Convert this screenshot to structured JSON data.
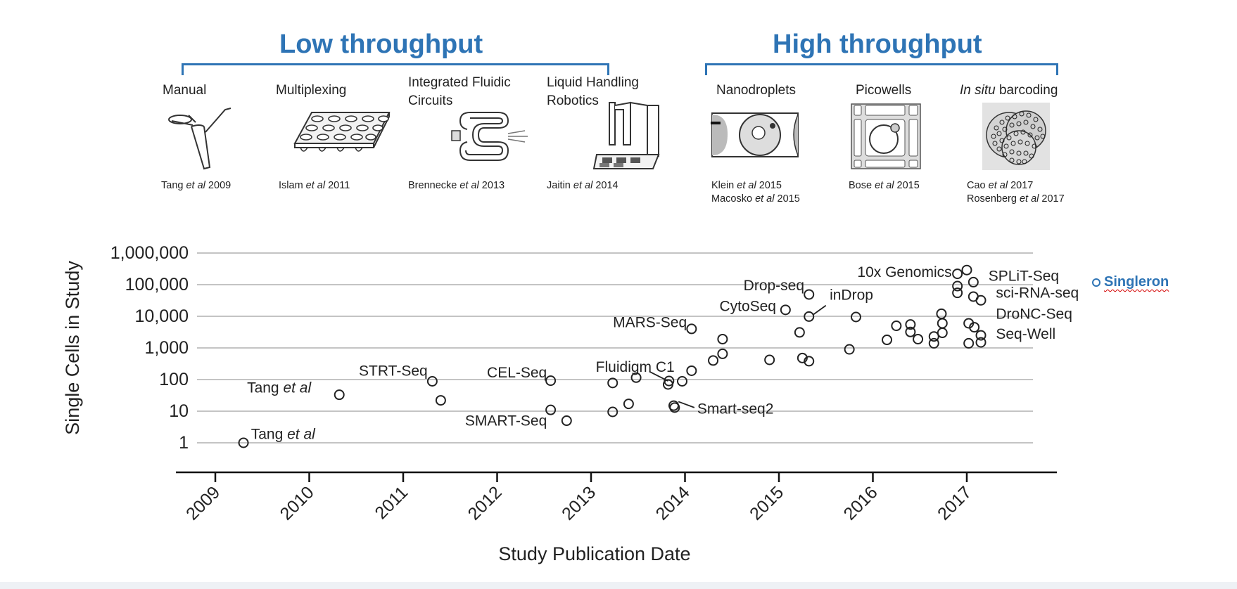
{
  "groups": {
    "low": {
      "title": "Low throughput"
    },
    "high": {
      "title": "High throughput"
    }
  },
  "methods": {
    "manual": {
      "label": "Manual",
      "cite_a": "Tang ",
      "cite_et": "et al",
      "cite_b": " 2009"
    },
    "multiplexing": {
      "label": "Multiplexing",
      "cite_a": "Islam ",
      "cite_et": "et al",
      "cite_b": " 2011"
    },
    "ifc": {
      "label_1": "Integrated Fluidic",
      "label_2": "Circuits",
      "cite_a": "Brennecke ",
      "cite_et": "et al",
      "cite_b": " 2013"
    },
    "robotics": {
      "label_1": "Liquid Handling",
      "label_2": "Robotics",
      "cite_a": "Jaitin ",
      "cite_et": "et al",
      "cite_b": " 2014"
    },
    "nanodroplets": {
      "label": "Nanodroplets",
      "cite1_a": "Klein ",
      "cite1_et": "et al",
      "cite1_b": " 2015",
      "cite2_a": "Macosko ",
      "cite2_et": "et al",
      "cite2_b": " 2015"
    },
    "picowells": {
      "label": "Picowells",
      "cite_a": "Bose ",
      "cite_et": "et al",
      "cite_b": " 2015"
    },
    "insitu": {
      "label_em": "In situ",
      "label_rest": " barcoding",
      "cite1_a": "Cao ",
      "cite1_et": "et al",
      "cite1_b": " 2017",
      "cite2_a": "Rosenberg ",
      "cite2_et": "et al",
      "cite2_b": " 2017"
    }
  },
  "legend": {
    "label": "Singleron",
    "color": "#2e74b5"
  },
  "chart_data": {
    "type": "scatter",
    "xlabel": "Study Publication Date",
    "ylabel": "Single Cells in Study",
    "xlim": [
      2008.75,
      2017.8
    ],
    "ylim": [
      1,
      1000000
    ],
    "yscale": "log",
    "grid": true,
    "x_ticks": [
      "2009",
      "2010",
      "2011",
      "2012",
      "2013",
      "2014",
      "2015",
      "2016",
      "2017"
    ],
    "y_ticks": [
      {
        "value": 1,
        "label": "1"
      },
      {
        "value": 10,
        "label": "10"
      },
      {
        "value": 100,
        "label": "100"
      },
      {
        "value": 1000,
        "label": "1,000"
      },
      {
        "value": 10000,
        "label": "10,000"
      },
      {
        "value": 100000,
        "label": "100,000"
      },
      {
        "value": 1000000,
        "label": "1,000,000"
      }
    ],
    "points": [
      {
        "x": 2009.3,
        "y": 1
      },
      {
        "x": 2010.32,
        "y": 33
      },
      {
        "x": 2011.31,
        "y": 88
      },
      {
        "x": 2011.4,
        "y": 22
      },
      {
        "x": 2012.57,
        "y": 92
      },
      {
        "x": 2012.57,
        "y": 11
      },
      {
        "x": 2012.74,
        "y": 5
      },
      {
        "x": 2013.23,
        "y": 78
      },
      {
        "x": 2013.23,
        "y": 9.5
      },
      {
        "x": 2013.4,
        "y": 17
      },
      {
        "x": 2013.48,
        "y": 115
      },
      {
        "x": 2013.82,
        "y": 70
      },
      {
        "x": 2013.83,
        "y": 90
      },
      {
        "x": 2013.88,
        "y": 15
      },
      {
        "x": 2013.89,
        "y": 13
      },
      {
        "x": 2013.97,
        "y": 88
      },
      {
        "x": 2014.07,
        "y": 190
      },
      {
        "x": 2014.07,
        "y": 4000
      },
      {
        "x": 2014.3,
        "y": 400
      },
      {
        "x": 2014.4,
        "y": 650
      },
      {
        "x": 2014.4,
        "y": 1900
      },
      {
        "x": 2014.9,
        "y": 420
      },
      {
        "x": 2015.07,
        "y": 16000
      },
      {
        "x": 2015.22,
        "y": 3100
      },
      {
        "x": 2015.25,
        "y": 480
      },
      {
        "x": 2015.32,
        "y": 380
      },
      {
        "x": 2015.32,
        "y": 9800
      },
      {
        "x": 2015.32,
        "y": 49000
      },
      {
        "x": 2015.75,
        "y": 900
      },
      {
        "x": 2015.82,
        "y": 9500
      },
      {
        "x": 2016.15,
        "y": 1800
      },
      {
        "x": 2016.25,
        "y": 5000
      },
      {
        "x": 2016.4,
        "y": 5500
      },
      {
        "x": 2016.4,
        "y": 3200
      },
      {
        "x": 2016.48,
        "y": 1900
      },
      {
        "x": 2016.65,
        "y": 2300
      },
      {
        "x": 2016.65,
        "y": 1400
      },
      {
        "x": 2016.73,
        "y": 12000
      },
      {
        "x": 2016.74,
        "y": 6000
      },
      {
        "x": 2016.74,
        "y": 3000
      },
      {
        "x": 2016.9,
        "y": 220000
      },
      {
        "x": 2016.9,
        "y": 90000
      },
      {
        "x": 2016.9,
        "y": 55000
      },
      {
        "x": 2017.0,
        "y": 290000
      },
      {
        "x": 2017.07,
        "y": 120000
      },
      {
        "x": 2017.07,
        "y": 42000
      },
      {
        "x": 2017.15,
        "y": 32000
      },
      {
        "x": 2017.02,
        "y": 6000
      },
      {
        "x": 2017.08,
        "y": 4500
      },
      {
        "x": 2017.02,
        "y": 1400
      },
      {
        "x": 2017.15,
        "y": 2500
      },
      {
        "x": 2017.15,
        "y": 1500
      }
    ],
    "annotations": [
      {
        "text": "Tang ",
        "em": "et al",
        "x": 2009.38,
        "y": 1.9,
        "anchor": "start"
      },
      {
        "text": "Tang ",
        "em": "et al",
        "x": 2010.02,
        "y": 55,
        "anchor": "end"
      },
      {
        "text": "STRT-Seq",
        "x": 2011.26,
        "y": 190,
        "anchor": "end"
      },
      {
        "text": "CEL-Seq",
        "x": 2012.53,
        "y": 165,
        "anchor": "end"
      },
      {
        "text": "SMART-Seq",
        "x": 2012.53,
        "y": 5,
        "anchor": "end"
      },
      {
        "text": "MARS-Seq",
        "x": 2014.02,
        "y": 6500,
        "anchor": "end"
      },
      {
        "text": "Fluidigm C1",
        "x": 2013.05,
        "y": 250,
        "anchor": "start"
      },
      {
        "text": "Smart-seq2",
        "x": 2014.13,
        "y": 12,
        "anchor": "start"
      },
      {
        "text": "CytoSeq",
        "x": 2014.97,
        "y": 21000,
        "anchor": "end"
      },
      {
        "text": "Drop-seq",
        "x": 2015.27,
        "y": 95000,
        "anchor": "end"
      },
      {
        "text": "inDrop",
        "x": 2015.54,
        "y": 48000,
        "anchor": "start"
      },
      {
        "text": "10x Genomics",
        "x": 2016.84,
        "y": 250000,
        "anchor": "end"
      },
      {
        "text": "SPLiT-Seq",
        "x": 2017.23,
        "y": 190000,
        "anchor": "start"
      },
      {
        "text": "sci-RNA-seq",
        "x": 2017.31,
        "y": 55000,
        "anchor": "start"
      },
      {
        "text": "DroNC-Seq",
        "x": 2017.31,
        "y": 12000,
        "anchor": "start"
      },
      {
        "text": "Seq-Well",
        "x": 2017.31,
        "y": 2800,
        "anchor": "start"
      }
    ],
    "leaders": [
      {
        "x1": 2013.62,
        "y1": 180,
        "x2": 2013.82,
        "y2": 90
      },
      {
        "x1": 2014.1,
        "y1": 13,
        "x2": 2013.93,
        "y2": 20
      },
      {
        "x1": 2015.5,
        "y1": 22000,
        "x2": 2015.36,
        "y2": 11000
      }
    ]
  }
}
